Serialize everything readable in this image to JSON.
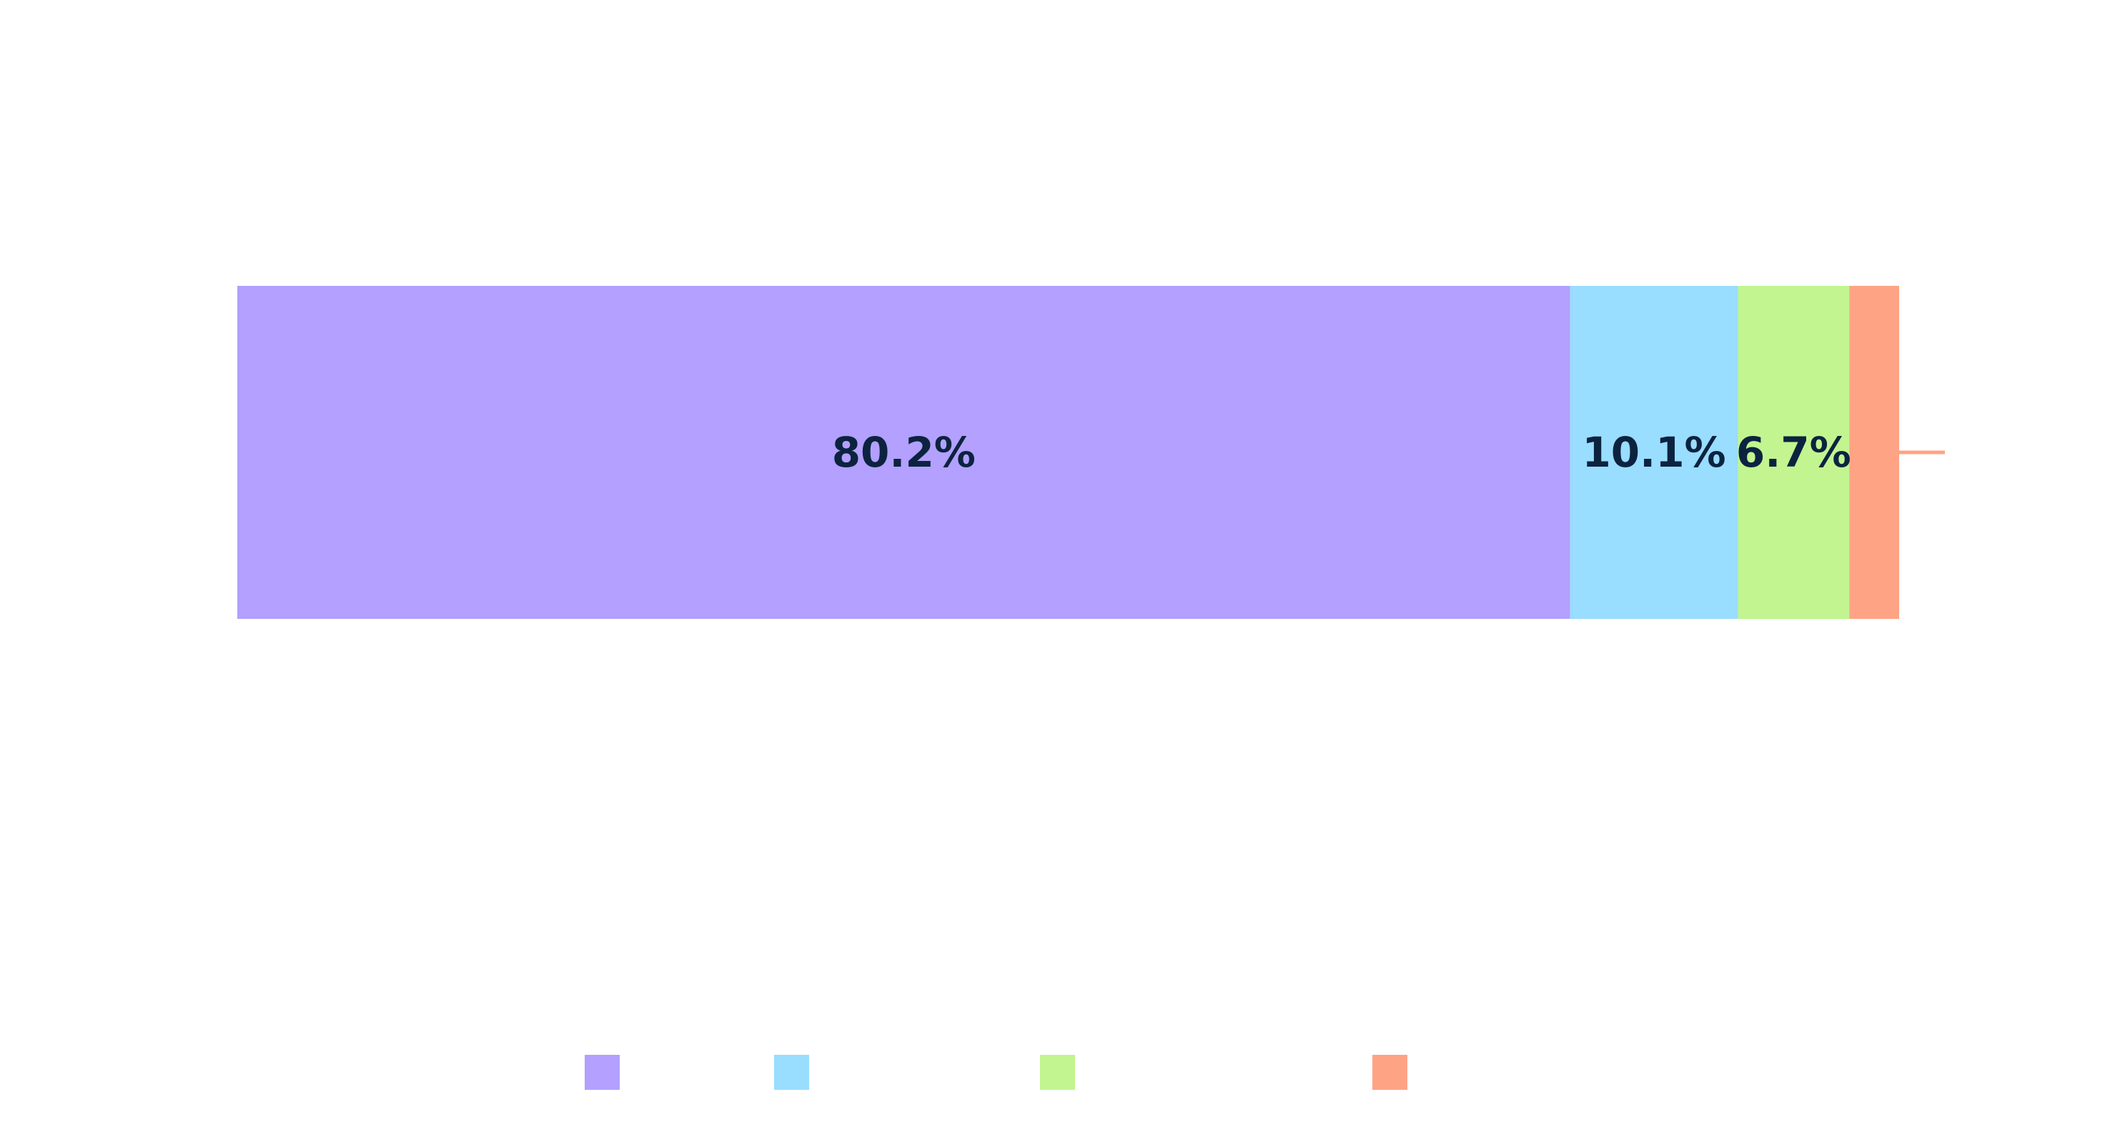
{
  "chart_data": {
    "type": "bar",
    "orientation": "horizontal",
    "stacked": true,
    "normalized_percent": true,
    "title": "",
    "xlabel": "",
    "ylabel": "",
    "xlim": [
      0,
      100
    ],
    "grid": false,
    "legend_position": "bottom",
    "categories": [
      ""
    ],
    "series": [
      {
        "value": 80.2,
        "label": "80.2%",
        "color": "#b3a0ff"
      },
      {
        "value": 10.1,
        "label": "10.1%",
        "color": "#99ddff"
      },
      {
        "value": 6.7,
        "label": "6.7%",
        "color": "#c2f58f"
      },
      {
        "value": 3.0,
        "label": "",
        "color": "#ffa385"
      }
    ]
  }
}
